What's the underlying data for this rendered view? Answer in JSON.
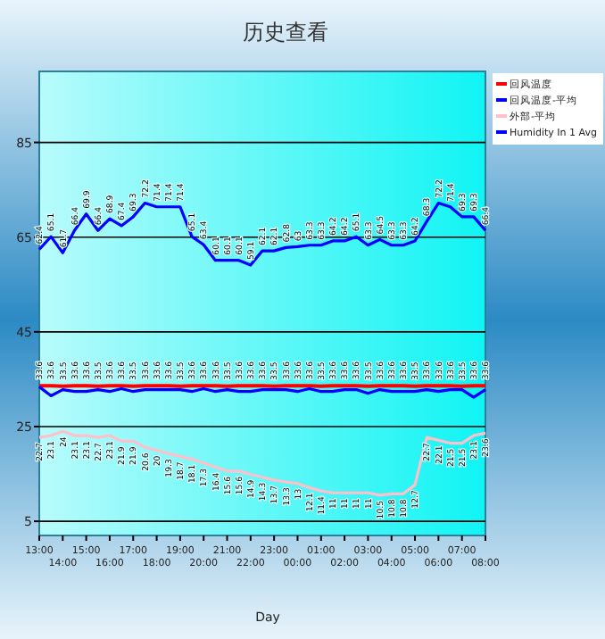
{
  "chart_data": {
    "type": "line",
    "title": "历史查看",
    "xlabel": "Day",
    "categories": [
      "13:00",
      null,
      "14:00",
      null,
      "15:00",
      null,
      "16:00",
      null,
      "17:00",
      null,
      "18:00",
      null,
      "19:00",
      null,
      "20:00",
      null,
      "21:00",
      null,
      "22:00",
      null,
      "23:00",
      null,
      "00:00",
      null,
      "01:00",
      null,
      "02:00",
      null,
      "03:00",
      null,
      "04:00",
      null,
      "05:00",
      null,
      "06:00",
      null,
      "07:00",
      null,
      "08:00"
    ],
    "series": [
      {
        "name": "回风温度",
        "color": "#ff0000",
        "data_labels": true,
        "values": [
          33.6,
          33.6,
          33.5,
          33.6,
          33.6,
          33.5,
          33.6,
          33.6,
          33.5,
          33.6,
          33.6,
          33.6,
          33.5,
          33.6,
          33.6,
          33.6,
          33.5,
          33.6,
          33.6,
          33.6,
          33.5,
          33.6,
          33.6,
          33.6,
          33.5,
          33.6,
          33.6,
          33.6,
          33.5,
          33.6,
          33.6,
          33.6,
          33.5,
          33.6,
          33.6,
          33.6,
          33.5,
          33.6,
          33.6
        ]
      },
      {
        "name": "回风温度-平均",
        "color": "#0000ff",
        "values": [
          33.4,
          31.5,
          32.8,
          32.4,
          32.4,
          32.8,
          32.4,
          33.0,
          32.4,
          32.8,
          32.8,
          32.8,
          32.8,
          32.4,
          33.0,
          32.4,
          32.8,
          32.4,
          32.4,
          32.8,
          32.8,
          32.8,
          32.4,
          33.0,
          32.4,
          32.4,
          32.8,
          32.8,
          32.0,
          32.8,
          32.4,
          32.4,
          32.4,
          32.8,
          32.4,
          32.8,
          32.8,
          31.2,
          32.8
        ]
      },
      {
        "name": "外部-平均",
        "color": "#ffc0cb",
        "data_labels": true,
        "values": [
          22.7,
          23.1,
          24.0,
          23.1,
          23.1,
          22.7,
          23.1,
          21.9,
          21.9,
          20.6,
          20.0,
          19.3,
          18.7,
          18.1,
          17.3,
          16.4,
          15.6,
          15.6,
          14.9,
          14.3,
          13.7,
          13.3,
          13.0,
          12.1,
          11.4,
          11.0,
          11.0,
          11.0,
          11.0,
          10.5,
          10.8,
          10.8,
          12.7,
          22.7,
          22.1,
          21.5,
          21.5,
          23.1,
          23.6
        ]
      },
      {
        "name": "Humidity In 1 Avg",
        "color": "#0000ff",
        "data_labels": true,
        "values": [
          62.4,
          65.1,
          61.7,
          66.4,
          69.9,
          66.4,
          68.9,
          67.4,
          69.3,
          72.2,
          71.4,
          71.4,
          71.4,
          65.1,
          63.4,
          60.1,
          60.1,
          60.1,
          59.1,
          62.1,
          62.1,
          62.8,
          63.0,
          63.3,
          63.3,
          64.2,
          64.2,
          65.1,
          63.3,
          64.5,
          63.3,
          63.3,
          64.2,
          68.3,
          72.2,
          71.4,
          69.3,
          69.3,
          66.4
        ]
      }
    ],
    "ylim": [
      2,
      100
    ],
    "yticks": [
      5,
      25,
      45,
      65,
      85
    ],
    "grid": "y",
    "legend": "top right",
    "line_style": "solid",
    "marker": "none"
  }
}
